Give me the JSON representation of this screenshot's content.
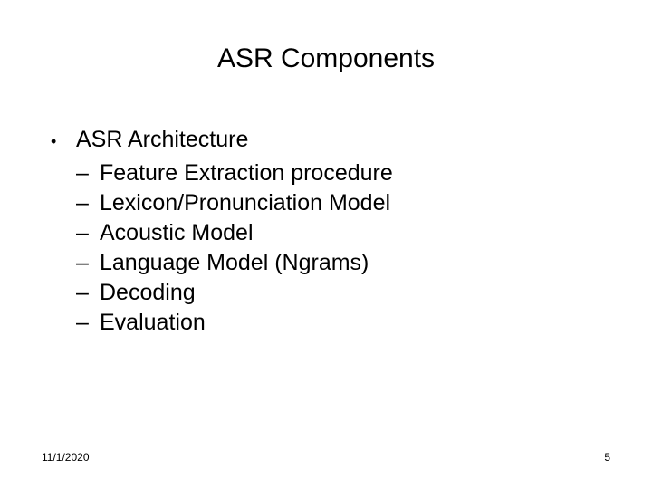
{
  "title": "ASR Components",
  "body": {
    "main_bullet": "ASR Architecture",
    "sub_items": [
      "Feature Extraction procedure",
      "Lexicon/Pronunciation Model",
      "Acoustic Model",
      "Language Model (Ngrams)",
      "Decoding",
      "Evaluation"
    ]
  },
  "footer": {
    "date": "11/1/2020",
    "page": "5"
  },
  "colors": {
    "background": "#ffffff",
    "text": "#000000"
  },
  "dash": "–",
  "bullet": "•"
}
